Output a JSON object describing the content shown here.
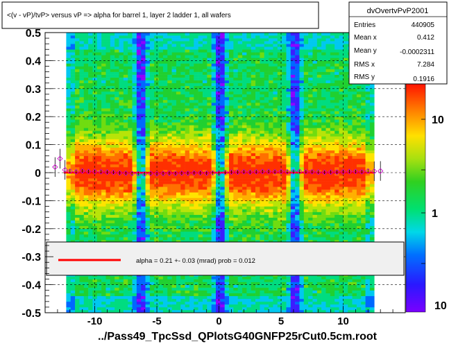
{
  "title": "<(v - vP)/tvP> versus   vP => alpha for barrel 1, layer 2 ladder 1, all wafers",
  "footer": "../Pass49_TpcSsd_QPlotsG40GNFP25rCut0.5cm.root",
  "stats": {
    "name": "dvOvertvPvP2001",
    "rows": [
      {
        "label": "Entries",
        "value": "440905"
      },
      {
        "label": "Mean x",
        "value": "0.412"
      },
      {
        "label": "Mean y",
        "value": "-0.0002311"
      },
      {
        "label": "RMS x",
        "value": "7.284"
      },
      {
        "label": "RMS y",
        "value": "0.1916"
      }
    ]
  },
  "fit_legend": "alpha =    0.21 +-  0.03 (mrad) prob = 0.012",
  "colors": {
    "fit_line": "#ff0000",
    "profile_marker": "#cc00cc"
  },
  "chart_data": {
    "type": "heatmap",
    "xlim": [
      -14,
      15
    ],
    "ylim": [
      -0.5,
      0.5
    ],
    "x_ticks": [
      -10,
      -5,
      0,
      5,
      10
    ],
    "y_ticks": [
      -0.5,
      -0.4,
      -0.3,
      -0.2,
      -0.1,
      0,
      0.1,
      0.2,
      0.3,
      0.4,
      0.5
    ],
    "z_scale": "log",
    "z_ticks": [
      "1",
      "10"
    ],
    "grid": true,
    "x_filled_range": [
      -12.3,
      12.5
    ],
    "x_gaps": [
      -6.2,
      0,
      6.2
    ],
    "fit_line": {
      "x_start": -12.5,
      "x_end": 12.5,
      "y": 0
    },
    "profile": {
      "x": [
        -13.2,
        -12.8,
        -12.4,
        -12,
        -11.5,
        -11,
        -10.5,
        -10,
        -9.5,
        -9,
        -8.5,
        -8,
        -7.5,
        -7,
        -6.5,
        -6,
        -5.5,
        -5,
        -4.5,
        -4,
        -3.5,
        -3,
        -2.5,
        -2,
        -1.5,
        -1,
        -0.5,
        0,
        0.5,
        1,
        1.5,
        2,
        2.5,
        3,
        3.5,
        4,
        4.5,
        5,
        5.5,
        6,
        6.5,
        7,
        7.5,
        8,
        8.5,
        9,
        9.5,
        10,
        10.5,
        11,
        11.5,
        12,
        12.5,
        13
      ],
      "y": [
        0.02,
        0.05,
        0.01,
        0.005,
        0.003,
        0.006,
        0.004,
        0.004,
        0.003,
        0.002,
        0.001,
        -0.001,
        -0.002,
        -0.003,
        -0.003,
        -0.004,
        -0.003,
        -0.004,
        -0.003,
        -0.002,
        -0.003,
        -0.002,
        -0.002,
        -0.001,
        -0.001,
        -0.002,
        -0.001,
        -0.002,
        0.001,
        0.002,
        0.002,
        0.003,
        0.002,
        0.003,
        0.004,
        0.004,
        0.003,
        0.004,
        0.003,
        0.003,
        0.004,
        0.003,
        0.003,
        0.002,
        0.001,
        0.002,
        0.002,
        0.003,
        0.004,
        0.004,
        0.003,
        0.006,
        0.005,
        0.006
      ]
    }
  }
}
